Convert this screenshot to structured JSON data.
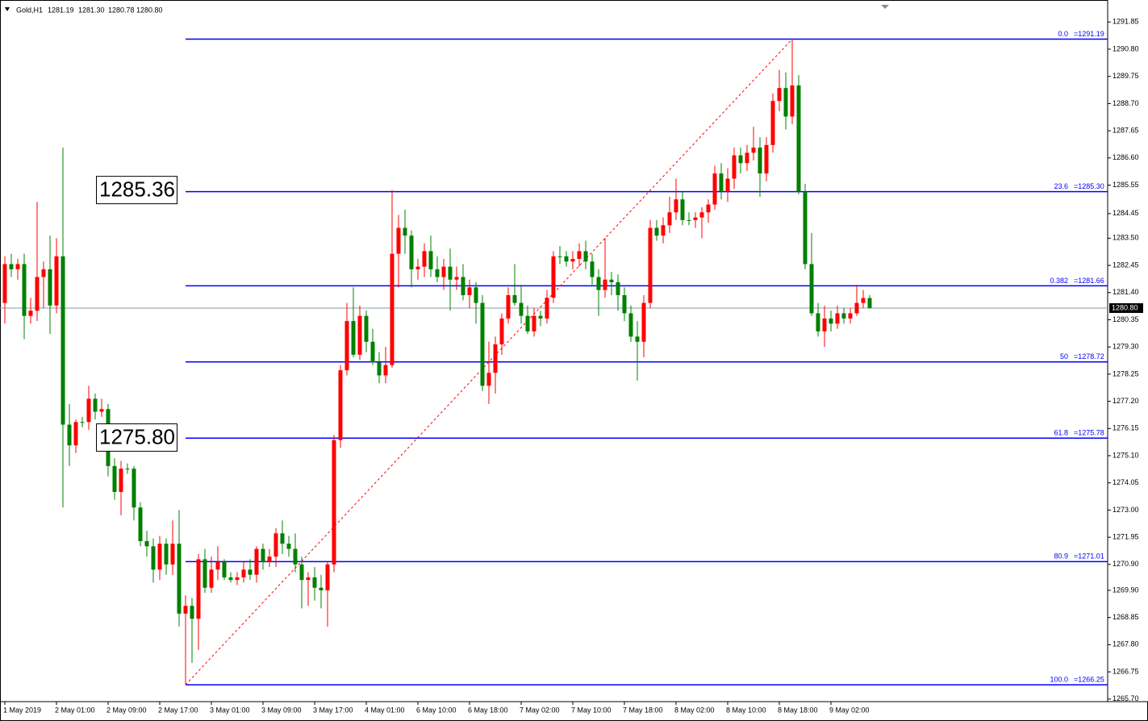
{
  "chart_data": {
    "type": "candlestick",
    "symbol": "Gold,H1",
    "quote": [
      "1281.19",
      "1281.30",
      "1280.78",
      "1280.80"
    ],
    "categories": [
      "1 May 2019",
      null,
      null,
      null,
      null,
      null,
      null,
      null,
      "2 May 01:00",
      null,
      null,
      null,
      null,
      null,
      null,
      null,
      "2 May 09:00",
      null,
      null,
      null,
      null,
      null,
      null,
      null,
      "2 May 17:00",
      null,
      null,
      null,
      null,
      null,
      null,
      null,
      "3 May 01:00",
      null,
      null,
      null,
      null,
      null,
      null,
      null,
      "3 May 09:00",
      null,
      null,
      null,
      null,
      null,
      null,
      null,
      "3 May 17:00",
      null,
      null,
      null,
      null,
      null,
      null,
      null,
      "4 May 01:00",
      null,
      null,
      null,
      null,
      null,
      null,
      null,
      "6 May 10:00",
      null,
      null,
      null,
      null,
      null,
      null,
      null,
      "6 May 18:00",
      null,
      null,
      null,
      null,
      null,
      null,
      null,
      "7 May 02:00",
      null,
      null,
      null,
      null,
      null,
      null,
      null,
      "7 May 10:00",
      null,
      null,
      null,
      null,
      null,
      null,
      null,
      "7 May 18:00",
      null,
      null,
      null,
      null,
      null,
      null,
      null,
      "8 May 02:00",
      null,
      null,
      null,
      null,
      null,
      null,
      null,
      "8 May 10:00",
      null,
      null,
      null,
      null,
      null,
      null,
      null,
      "8 May 18:00",
      null,
      null,
      null,
      null,
      null,
      null,
      null,
      "9 May 02:00",
      null,
      null,
      null,
      null,
      null,
      null
    ],
    "open": [
      1281.0,
      1282.5,
      1282.3,
      1282.5,
      1280.5,
      1280.7,
      1282.0,
      1282.3,
      1280.9,
      1282.8,
      1276.3,
      1275.5,
      1276.4,
      1276.4,
      1277.3,
      1276.8,
      1276.9,
      1274.7,
      1273.7,
      1274.6,
      1274.6,
      1273.1,
      1271.8,
      1271.6,
      1270.7,
      1271.7,
      1270.9,
      1271.7,
      1269.0,
      1269.3,
      1268.8,
      1271.1,
      1270.0,
      1270.7,
      1271.0,
      1270.4,
      1270.3,
      1270.4,
      1270.7,
      1270.5,
      1271.5,
      1271.0,
      1271.2,
      1272.1,
      1271.7,
      1271.5,
      1270.9,
      1270.3,
      1270.4,
      1270.0,
      1269.9,
      1270.9,
      1275.7,
      1278.4,
      1280.3,
      1279.0,
      1280.5,
      1279.5,
      1278.7,
      1278.2,
      1278.6,
      1282.9,
      1283.9,
      1283.6,
      1282.3,
      1282.4,
      1283.0,
      1282.3,
      1282.0,
      1282.4,
      1281.9,
      1282.0,
      1281.3,
      1281.6,
      1281.0,
      1277.8,
      1278.3,
      1279.4,
      1280.4,
      1281.3,
      1281.0,
      1280.5,
      1279.9,
      1280.5,
      1280.4,
      1281.2,
      1282.8,
      1282.8,
      1282.6,
      1282.7,
      1283.0,
      1282.6,
      1282.0,
      1281.5,
      1281.9,
      1281.8,
      1281.3,
      1280.6,
      1279.7,
      1279.5,
      1281.0,
      1283.9,
      1283.6,
      1284.0,
      1284.5,
      1285.0,
      1284.2,
      1284.2,
      1284.3,
      1284.5,
      1284.8,
      1286.0,
      1285.3,
      1285.8,
      1286.7,
      1286.4,
      1286.8,
      1287.0,
      1286.0,
      1287.1,
      1288.8,
      1289.3,
      1288.2,
      1289.4,
      1285.3,
      1282.5,
      1280.6,
      1279.9,
      1280.4,
      1280.2,
      1280.6,
      1280.4,
      1280.6,
      1281.0,
      1281.19
    ],
    "high": [
      1282.8,
      1282.9,
      1282.7,
      1282.9,
      1281.2,
      1284.9,
      1282.6,
      1283.6,
      1283.5,
      1287.0,
      1277.1,
      1276.5,
      1276.6,
      1277.8,
      1277.5,
      1277.3,
      1277.1,
      1275.0,
      1274.9,
      1274.8,
      1274.7,
      1273.3,
      1272.2,
      1271.9,
      1272.0,
      1271.9,
      1272.6,
      1273.0,
      1269.7,
      1269.6,
      1271.3,
      1271.5,
      1271.2,
      1271.6,
      1271.1,
      1270.6,
      1270.6,
      1271.0,
      1271.1,
      1271.6,
      1271.7,
      1271.5,
      1272.3,
      1272.6,
      1272.0,
      1272.1,
      1271.2,
      1270.6,
      1270.8,
      1270.5,
      1271.0,
      1275.9,
      1278.6,
      1281.0,
      1281.6,
      1280.9,
      1280.7,
      1280.0,
      1279.1,
      1279.3,
      1285.36,
      1284.4,
      1284.6,
      1283.8,
      1282.7,
      1283.3,
      1283.6,
      1282.8,
      1282.7,
      1283.1,
      1282.4,
      1282.5,
      1281.9,
      1281.8,
      1281.3,
      1279.5,
      1279.7,
      1280.6,
      1281.6,
      1282.5,
      1281.7,
      1280.9,
      1280.8,
      1280.7,
      1281.5,
      1283.0,
      1283.2,
      1283.0,
      1283.0,
      1283.3,
      1283.4,
      1282.9,
      1282.3,
      1283.5,
      1282.2,
      1282.1,
      1281.6,
      1280.9,
      1280.3,
      1281.3,
      1284.2,
      1284.2,
      1284.3,
      1285.1,
      1285.8,
      1285.3,
      1284.5,
      1284.5,
      1284.7,
      1285.0,
      1286.3,
      1286.4,
      1286.2,
      1287.0,
      1287.0,
      1287.1,
      1287.8,
      1287.4,
      1287.4,
      1289.1,
      1290.0,
      1289.9,
      1291.19,
      1289.8,
      1285.6,
      1283.7,
      1281.0,
      1280.9,
      1280.7,
      1280.9,
      1280.8,
      1280.8,
      1281.7,
      1281.5,
      1281.3
    ],
    "low": [
      1280.2,
      1282.0,
      1281.9,
      1279.6,
      1280.2,
      1280.3,
      1280.8,
      1279.8,
      1280.6,
      1273.1,
      1274.7,
      1275.2,
      1276.2,
      1276.1,
      1276.5,
      1276.6,
      1274.3,
      1273.4,
      1272.8,
      1274.4,
      1272.6,
      1271.6,
      1271.2,
      1270.2,
      1270.3,
      1270.5,
      1270.5,
      1268.5,
      1266.25,
      1267.1,
      1267.6,
      1269.8,
      1269.8,
      1270.3,
      1270.3,
      1270.2,
      1270.1,
      1270.2,
      1270.3,
      1270.2,
      1270.7,
      1270.8,
      1270.8,
      1271.3,
      1271.2,
      1270.6,
      1269.2,
      1269.3,
      1269.5,
      1269.2,
      1268.5,
      1270.6,
      1275.4,
      1278.2,
      1278.9,
      1278.8,
      1279.1,
      1278.6,
      1277.9,
      1277.9,
      1278.5,
      1281.6,
      1282.9,
      1281.6,
      1281.9,
      1282.0,
      1282.0,
      1281.8,
      1281.5,
      1280.7,
      1281.5,
      1281.1,
      1280.8,
      1280.2,
      1277.6,
      1277.1,
      1277.5,
      1279.0,
      1280.2,
      1280.9,
      1280.2,
      1279.8,
      1279.7,
      1280.1,
      1280.2,
      1281.0,
      1282.5,
      1282.4,
      1282.3,
      1282.4,
      1282.3,
      1281.7,
      1280.5,
      1281.2,
      1281.3,
      1280.7,
      1280.3,
      1279.5,
      1278.0,
      1278.9,
      1280.8,
      1283.4,
      1283.3,
      1283.7,
      1284.2,
      1284.0,
      1284.0,
      1283.9,
      1283.5,
      1284.1,
      1284.6,
      1285.0,
      1284.9,
      1285.4,
      1286.0,
      1286.1,
      1286.5,
      1285.1,
      1285.7,
      1286.8,
      1288.4,
      1287.7,
      1287.9,
      1285.2,
      1282.3,
      1280.5,
      1279.7,
      1279.3,
      1279.9,
      1280.0,
      1280.2,
      1280.2,
      1280.5,
      1280.8,
      1280.78
    ],
    "close": [
      1282.5,
      1282.3,
      1282.5,
      1280.5,
      1280.7,
      1282.0,
      1282.3,
      1280.9,
      1282.8,
      1276.3,
      1275.5,
      1276.4,
      1276.4,
      1277.3,
      1276.8,
      1276.9,
      1274.7,
      1273.7,
      1274.6,
      1274.6,
      1273.1,
      1271.8,
      1271.6,
      1270.7,
      1271.7,
      1270.9,
      1271.7,
      1269.0,
      1269.3,
      1268.8,
      1271.1,
      1270.0,
      1270.7,
      1271.0,
      1270.4,
      1270.3,
      1270.4,
      1270.7,
      1270.5,
      1271.5,
      1271.0,
      1271.2,
      1272.1,
      1271.7,
      1271.5,
      1270.9,
      1270.3,
      1270.4,
      1270.0,
      1269.9,
      1270.9,
      1275.7,
      1278.4,
      1280.3,
      1279.0,
      1280.5,
      1279.5,
      1278.7,
      1278.2,
      1278.6,
      1282.9,
      1283.9,
      1283.6,
      1282.3,
      1282.4,
      1283.0,
      1282.3,
      1282.0,
      1282.4,
      1281.9,
      1282.0,
      1281.3,
      1281.6,
      1281.0,
      1277.8,
      1278.3,
      1279.4,
      1280.4,
      1281.3,
      1281.0,
      1280.5,
      1279.9,
      1280.5,
      1280.4,
      1281.2,
      1282.8,
      1282.8,
      1282.6,
      1282.7,
      1283.0,
      1282.6,
      1282.0,
      1281.5,
      1281.9,
      1281.8,
      1281.3,
      1280.6,
      1279.7,
      1279.5,
      1281.0,
      1283.9,
      1283.6,
      1284.0,
      1284.5,
      1285.0,
      1284.2,
      1284.2,
      1284.3,
      1284.5,
      1284.8,
      1286.0,
      1285.3,
      1285.8,
      1286.7,
      1286.4,
      1286.8,
      1287.0,
      1286.0,
      1287.1,
      1288.8,
      1289.3,
      1288.2,
      1289.4,
      1285.3,
      1282.5,
      1280.6,
      1279.9,
      1280.4,
      1280.2,
      1280.6,
      1280.4,
      1280.6,
      1281.0,
      1281.19,
      1280.8
    ],
    "up_color": "#ff0000",
    "down_color": "#008000",
    "ylim": [
      1265.6,
      1292.7
    ],
    "yticks": [
      1291.85,
      {
        "value": 1290.8,
        "label": "1290.80"
      },
      1289.75,
      {
        "value": 1288.7,
        "label": "1288.70"
      },
      1287.65,
      {
        "value": 1286.6,
        "label": "1286.60"
      },
      1285.55,
      1284.45,
      {
        "value": 1283.5,
        "label": "1283.50"
      },
      1282.45,
      {
        "value": 1281.4,
        "label": "1281.40"
      },
      1280.35,
      {
        "value": 1279.3,
        "label": "1279.30"
      },
      1278.25,
      {
        "value": 1277.2,
        "label": "1277.20"
      },
      1276.15,
      {
        "value": 1275.1,
        "label": "1275.10"
      },
      1274.05,
      {
        "value": 1273,
        "label": "1273.00"
      },
      1271.95,
      {
        "value": 1270.9,
        "label": "1270.90"
      },
      {
        "value": 1269.9,
        "label": "1269.90"
      },
      1268.85,
      {
        "value": 1267.8,
        "label": "1267.80"
      },
      1266.75,
      {
        "value": 1265.7,
        "label": "1265.70"
      }
    ],
    "current_price": {
      "value": 1280.8,
      "label": "1280.80"
    },
    "price_labels": [
      {
        "value": 1285.36,
        "label": "1285.36"
      },
      {
        "value": 1275.8,
        "label": "1275.80"
      }
    ],
    "fibonacci": {
      "color": "#0000ff",
      "trend_color": "#ff0000",
      "levels": [
        {
          "ratio": "0.0",
          "price": 1291.19,
          "price_label": "=1291.19"
        },
        {
          "ratio": "23.6",
          "price": 1285.3,
          "price_label": "=1285.30"
        },
        {
          "ratio": "0.382",
          "price": 1281.66,
          "price_label": "=1281.66"
        },
        {
          "ratio": "50",
          "price": 1278.72,
          "price_label": "=1278.72"
        },
        {
          "ratio": "61.8",
          "price": 1275.78,
          "price_label": "=1275.78"
        },
        {
          "ratio": "80.9",
          "price": 1271.01,
          "price_label": "=1271.01"
        },
        {
          "ratio": "100.0",
          "price": 1266.25,
          "price_label": "=1266.25"
        }
      ]
    }
  }
}
